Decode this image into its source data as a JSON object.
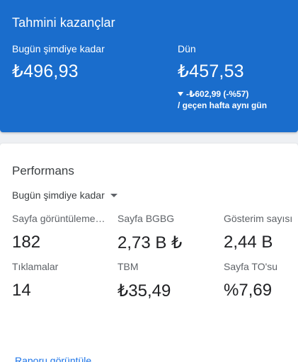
{
  "earnings": {
    "title": "Tahmini kazançlar",
    "today": {
      "label": "Bugün şimdiye kadar",
      "value": "₺496,93"
    },
    "yesterday": {
      "label": "Dün",
      "value": "₺457,53",
      "change": "-₺602,99 (-%57)",
      "compare": "/ geçen hafta aynı gün"
    }
  },
  "performance": {
    "title": "Performans",
    "range": "Bugün şimdiye kadar",
    "metrics": [
      {
        "label": "Sayfa görüntülemeleri",
        "value": "182"
      },
      {
        "label": "Sayfa BGBG",
        "value": "2,73 B ₺"
      },
      {
        "label": "Gösterim sayısı",
        "value": "2,44 B"
      },
      {
        "label": "Tıklamalar",
        "value": "14"
      },
      {
        "label": "TBM",
        "value": "₺35,49"
      },
      {
        "label": "Sayfa TO'su",
        "value": "%7,69"
      }
    ],
    "report_link": "Raporu görüntüle"
  },
  "colors": {
    "earnings_bg": "#1a6dcc",
    "link": "#1a73e8"
  },
  "icons": {
    "down_arrow": "triangle-down-icon",
    "dropdown": "caret-down-icon"
  }
}
